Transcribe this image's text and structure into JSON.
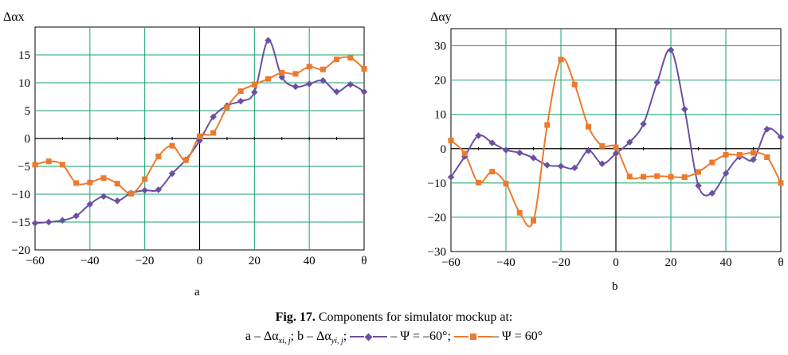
{
  "chart_data": [
    {
      "type": "line",
      "panel": "a",
      "ylabel": "Δαx",
      "xlim": [
        -60,
        60
      ],
      "ylim": [
        -20,
        20
      ],
      "xticks": [
        "−60",
        "−40",
        "−20",
        "0",
        "20",
        "40",
        "θ"
      ],
      "yticks": [
        "−20",
        "−15",
        "−10",
        "−5",
        "0",
        "5",
        "10",
        "15"
      ],
      "ytick_values": [
        -20,
        -15,
        -10,
        -5,
        0,
        5,
        10,
        15
      ],
      "x": [
        -60,
        -55,
        -50,
        -45,
        -40,
        -35,
        -30,
        -25,
        -20,
        -15,
        -10,
        -5,
        0,
        5,
        10,
        15,
        20,
        25,
        30,
        35,
        40,
        45,
        50,
        55,
        60
      ],
      "series": [
        {
          "color": "#6a4fa3",
          "marker": "diamond",
          "values": [
            -15.2,
            -15,
            -14.7,
            -13.9,
            -11.8,
            -10.4,
            -11.2,
            -9.8,
            -9.3,
            -9.2,
            -6.3,
            -3.8,
            -0.4,
            3.9,
            5.9,
            6.7,
            8.3,
            17.6,
            11,
            9.3,
            9.8,
            10.4,
            8.4,
            9.7,
            8.4
          ]
        },
        {
          "color": "#ec7a2e",
          "marker": "square",
          "values": [
            -4.7,
            -4.1,
            -4.7,
            -8,
            -7.9,
            -7.1,
            -8.1,
            -9.9,
            -7.3,
            -3.2,
            -1.3,
            -3.9,
            0.4,
            1,
            5.6,
            8.5,
            9.7,
            10.7,
            11.8,
            11.6,
            12.9,
            12.4,
            14.2,
            14.5,
            12.5
          ]
        }
      ],
      "grid": true
    },
    {
      "type": "line",
      "panel": "b",
      "ylabel": "Δαy",
      "xlim": [
        -60,
        60
      ],
      "ylim": [
        -30,
        35
      ],
      "xticks": [
        "−60",
        "−40",
        "−20",
        "0",
        "20",
        "40",
        "θ"
      ],
      "yticks": [
        "−30",
        "−20",
        "−10",
        "0",
        "10",
        "20",
        "30"
      ],
      "ytick_values": [
        -30,
        -20,
        -10,
        0,
        10,
        20,
        30
      ],
      "x": [
        -60,
        -55,
        -50,
        -45,
        -40,
        -35,
        -30,
        -25,
        -20,
        -15,
        -10,
        -5,
        0,
        5,
        10,
        15,
        20,
        25,
        30,
        35,
        40,
        45,
        50,
        55,
        60
      ],
      "series": [
        {
          "color": "#6a4fa3",
          "marker": "diamond",
          "values": [
            -8.3,
            -2.3,
            3.8,
            1.7,
            -0.4,
            -1.2,
            -2.7,
            -4.8,
            -5.1,
            -5.6,
            -0.6,
            -4.4,
            -1.4,
            1.9,
            7.2,
            19.3,
            28.8,
            11.5,
            -10.8,
            -13,
            -7.2,
            -2.4,
            -3.2,
            5.7,
            3.4
          ]
        },
        {
          "color": "#ec7a2e",
          "marker": "square",
          "values": [
            2.4,
            -1.4,
            -9.9,
            -6.7,
            -10.2,
            -18.7,
            -21,
            6.9,
            26,
            18.7,
            6.4,
            0.8,
            0.4,
            -8.1,
            -8.2,
            -8,
            -8.2,
            -8.3,
            -6.8,
            -4,
            -1.8,
            -1.8,
            -1.2,
            -2.5,
            -10
          ]
        }
      ],
      "grid": true
    }
  ],
  "caption": {
    "fig_label": "Fig. 17.",
    "line1_text": " Components for simulator mockup at:",
    "part_a": "a – Δα",
    "sub_a": "xi, j",
    "sep": "; b – Δα",
    "sub_b": "yi, j",
    "after_b": ";",
    "legend_purple": "– Ψ = –60°;",
    "legend_orange": "– Ψ = 60°"
  }
}
